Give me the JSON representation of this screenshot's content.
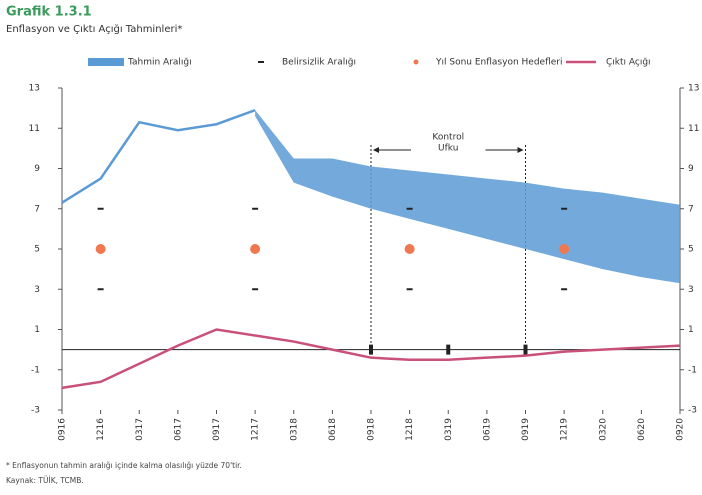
{
  "chart_data": {
    "type": "line",
    "title": "Grafik 1.3.1",
    "subtitle": "Enflasyon ve Çıktı Açığı Tahminleri*",
    "categories": [
      "0916",
      "1216",
      "0317",
      "0617",
      "0917",
      "1217",
      "0318",
      "0618",
      "0918",
      "1218",
      "0319",
      "0619",
      "0919",
      "1219",
      "0320",
      "0620",
      "0920"
    ],
    "ylim": [
      -3,
      13
    ],
    "yticks": [
      -3,
      -1,
      1,
      3,
      5,
      7,
      9,
      11,
      13
    ],
    "series": [
      {
        "kind": "band",
        "name": "Tahmin Aralığı",
        "color": "#5b9bd5",
        "high": [
          null,
          null,
          null,
          null,
          null,
          11.9,
          9.5,
          9.5,
          9.1,
          8.9,
          8.7,
          8.5,
          8.3,
          8.0,
          7.8,
          7.5,
          7.2
        ],
        "low": [
          null,
          null,
          null,
          null,
          null,
          11.6,
          8.3,
          7.6,
          7.0,
          6.5,
          6.0,
          5.5,
          5.0,
          4.5,
          4.0,
          3.6,
          3.3
        ]
      },
      {
        "kind": "range",
        "name": "Belirsizlik Aralığı",
        "color": "#222222",
        "high": [
          null,
          7,
          null,
          null,
          null,
          7,
          null,
          null,
          null,
          7,
          null,
          null,
          null,
          7,
          null,
          null,
          null
        ],
        "low": [
          null,
          3,
          null,
          null,
          null,
          3,
          null,
          null,
          null,
          3,
          null,
          null,
          null,
          3,
          null,
          null,
          null
        ]
      },
      {
        "kind": "dot",
        "name": "Yıl Sonu Enflasyon Hedefleri",
        "color": "#f07850",
        "values": [
          null,
          5,
          null,
          null,
          null,
          5,
          null,
          null,
          null,
          5,
          null,
          null,
          null,
          5,
          null,
          null,
          null
        ]
      },
      {
        "kind": "line",
        "name": "Çıktı Açığı",
        "color": "#c9507a",
        "values": [
          -1.9,
          -1.6,
          -0.7,
          0.2,
          1.0,
          0.7,
          0.4,
          0.0,
          -0.4,
          -0.5,
          -0.5,
          -0.4,
          -0.3,
          -0.1,
          0.0,
          0.1,
          0.2
        ]
      },
      {
        "kind": "line",
        "color": "#5b9bd5",
        "values": [
          7.3,
          8.5,
          11.3,
          10.9,
          11.2,
          11.9,
          null,
          null,
          null,
          null,
          null,
          null,
          null,
          null,
          null,
          null,
          null
        ]
      }
    ],
    "control_horizon": {
      "label": [
        "Kontrol",
        "Ufku"
      ],
      "from": "0918",
      "to": "0919"
    },
    "notes": [
      "* Enflasyonun tahmin aralığı içinde kalma olasılığı yüzde 70'tir.",
      "Kaynak: TÜİK, TCMB."
    ]
  }
}
